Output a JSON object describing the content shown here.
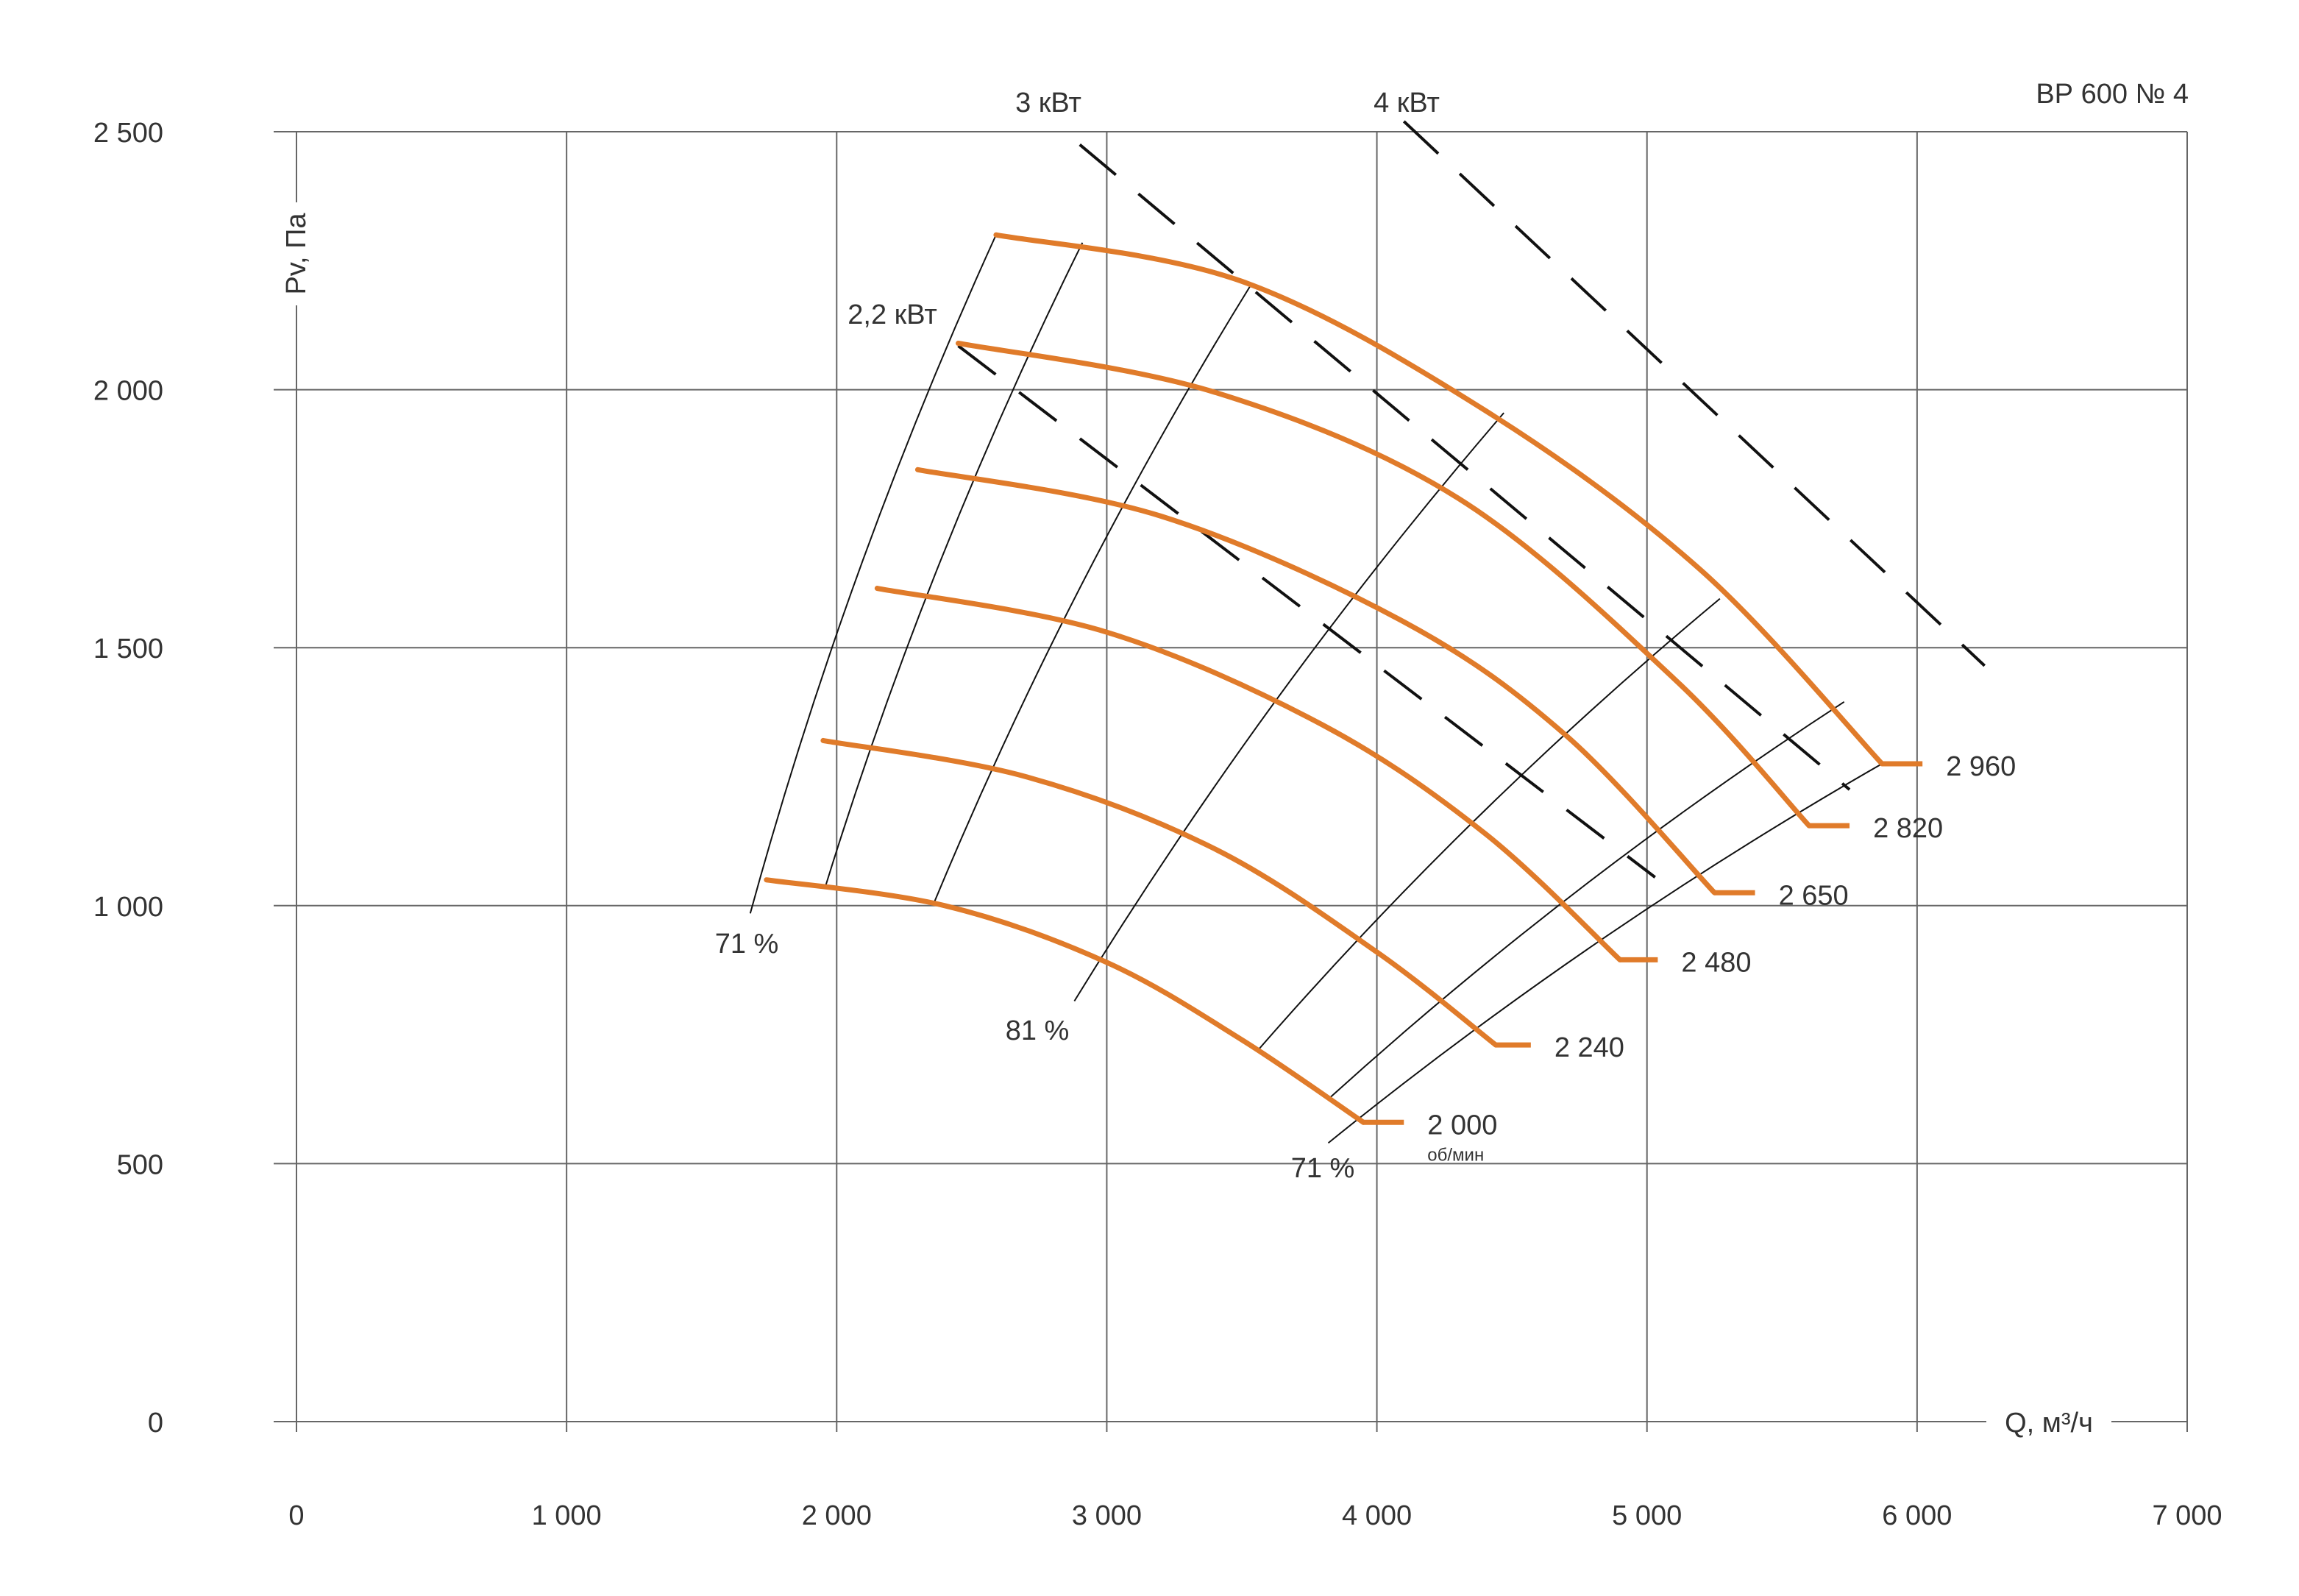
{
  "chart_data": {
    "type": "line",
    "title": "ВР 600 № 4",
    "xlabel": "Q, м³/ч",
    "ylabel": "Pv, Па",
    "xlim": [
      0,
      7000
    ],
    "ylim": [
      0,
      2500
    ],
    "x_ticks": [
      {
        "value": 0,
        "label": "0"
      },
      {
        "value": 1000,
        "label": "1 000"
      },
      {
        "value": 2000,
        "label": "2 000"
      },
      {
        "value": 3000,
        "label": "3 000"
      },
      {
        "value": 4000,
        "label": "4 000"
      },
      {
        "value": 5000,
        "label": "5 000"
      },
      {
        "value": 6000,
        "label": "6 000"
      },
      {
        "value": 7000,
        "label": "7 000"
      }
    ],
    "y_ticks": [
      {
        "value": 0,
        "label": "0"
      },
      {
        "value": 500,
        "label": "500"
      },
      {
        "value": 1000,
        "label": "1 000"
      },
      {
        "value": 1500,
        "label": "1 500"
      },
      {
        "value": 2000,
        "label": "2 000"
      },
      {
        "value": 2500,
        "label": "2 500"
      }
    ],
    "grid": true,
    "colors": {
      "curve": "#e07b2a",
      "grid": "#666666",
      "text": "#333333",
      "dash": "#111111"
    },
    "series": [
      {
        "name": "2 000",
        "unit": "об/мин",
        "x": [
          1740,
          2400,
          3000,
          3500,
          3950
        ],
        "y": [
          1050,
          1000,
          890,
          740,
          580
        ],
        "end_tick": [
          3950,
          4100
        ]
      },
      {
        "name": "2 240",
        "x": [
          1950,
          2700,
          3400,
          4000,
          4440
        ],
        "y": [
          1320,
          1250,
          1110,
          910,
          730
        ],
        "end_tick": [
          4440,
          4570
        ]
      },
      {
        "name": "2 480",
        "x": [
          2150,
          3000,
          3800,
          4400,
          4900
        ],
        "y": [
          1615,
          1530,
          1350,
          1140,
          895
        ],
        "end_tick": [
          4900,
          5040
        ]
      },
      {
        "name": "2 650",
        "x": [
          2300,
          3200,
          4100,
          4700,
          5250
        ],
        "y": [
          1845,
          1755,
          1550,
          1330,
          1025
        ],
        "end_tick": [
          5250,
          5400
        ]
      },
      {
        "name": "2 820",
        "x": [
          2450,
          3400,
          4300,
          5100,
          5600
        ],
        "y": [
          2090,
          1995,
          1790,
          1440,
          1155
        ],
        "end_tick": [
          5600,
          5750
        ]
      },
      {
        "name": "2 960",
        "x": [
          2590,
          3500,
          4400,
          5200,
          5870
        ],
        "y": [
          2300,
          2210,
          1960,
          1650,
          1275
        ],
        "end_tick": [
          5870,
          6020
        ]
      }
    ],
    "efficiency_lines": [
      {
        "label": "71 %",
        "x": [
          1680,
          2590
        ],
        "y": [
          985,
          2300
        ]
      },
      {
        "label": "",
        "x": [
          1960,
          2910
        ],
        "y": [
          1040,
          2285
        ]
      },
      {
        "label": "",
        "x": [
          2360,
          3530
        ],
        "y": [
          1005,
          2200
        ]
      },
      {
        "label": "81 %",
        "x": [
          2880,
          4470
        ],
        "y": [
          815,
          1955
        ]
      },
      {
        "label": "",
        "x": [
          3560,
          5270
        ],
        "y": [
          720,
          1595
        ]
      },
      {
        "label": "",
        "x": [
          3820,
          5730
        ],
        "y": [
          625,
          1395
        ]
      },
      {
        "label": "71 %",
        "x": [
          3820,
          5870
        ],
        "y": [
          540,
          1275
        ]
      }
    ],
    "power_lines": [
      {
        "label": "2,2 кВт",
        "x": [
          2450,
          5030
        ],
        "y": [
          2085,
          1055
        ]
      },
      {
        "label": "3 кВт",
        "x": [
          2900,
          5750
        ],
        "y": [
          2475,
          1225
        ]
      },
      {
        "label": "4 кВт",
        "x": [
          4100,
          6250
        ],
        "y": [
          2520,
          1465
        ]
      }
    ]
  }
}
